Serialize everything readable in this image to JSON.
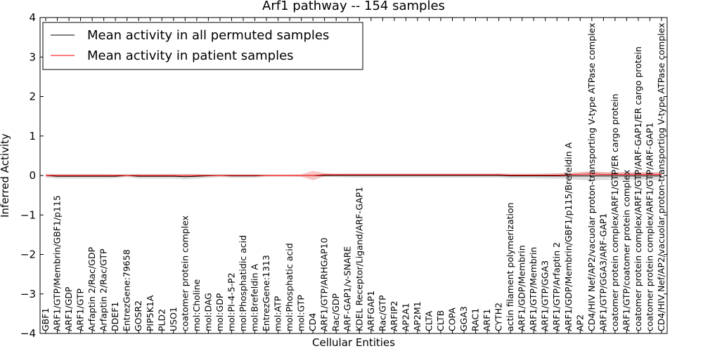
{
  "chart_data": {
    "type": "line",
    "title": "Arf1 pathway -- 154 samples",
    "xlabel": "Cellular Entities",
    "ylabel": "Inferred Activity",
    "ylim": [
      -4,
      4
    ],
    "yticks": [
      -4,
      -3,
      -2,
      -1,
      0,
      1,
      2,
      3,
      4
    ],
    "ytick_labels": [
      "−4",
      "−3",
      "−2",
      "−1",
      "0",
      "1",
      "2",
      "3",
      "4"
    ],
    "grid": false,
    "legend_position": "top-left",
    "categories": [
      "GBF1",
      "ARF1/GTP/Membrin/GBF1/p115",
      "ARF1/GDP",
      "ARF1/GTP",
      "Arfaptin 2/Rac/GDP",
      "Arfaptin 2/Rac/GTP",
      "DDEF1",
      "EntrezGene:79658",
      "GOSR2",
      "PIP5K1A",
      "PLD2",
      "USO1",
      "coatomer protein complex",
      "mol:Choline",
      "mol:DAG",
      "mol:GDP",
      "mol:PI-4-5-P2",
      "mol:Phosphatidic acid",
      "mol:Brefeldin A",
      "EntrezGene:1313",
      "mol:ATP",
      "mol:Phosphatic acid",
      "mol:GTP",
      "CD4",
      "ARF1/GTP/ARHGAP10",
      "Rac/GDP",
      "ARF-GAP1/v-SNARE",
      "KDEL Receptor/Ligand/ARF-GAP1",
      "ARFGAP1",
      "Rac/GTP",
      "ARFIP2",
      "AP2A1",
      "AP2M1",
      "CLTA",
      "CLTB",
      "COPA",
      "GGA3",
      "RAC1",
      "ARF1",
      "CYTH2",
      "actin filament polymerization",
      "ARF1/GDP/Membrin",
      "ARF1/GTP/Membrin",
      "ARF1/GTP/GGA3",
      "ARF1/GTP/Arfaptin 2",
      "ARF1/GDP/Membrin/GBF1/p115/Brefeldin A",
      "AP2",
      "CD4/HIV Nef/AP2/vacuolar proton-transporting V-type ATPase complex",
      "ARF1/GTP/GGA3/ARF-GAP1",
      "coatomer protein complex/ARF1/GTP/ER cargo protein",
      "ARF1/GTP/coatomer protein complex",
      "coatomer protein complex/ARF1/GTP/ARF-GAP1/ER cargo protein",
      "coatomer protein complex/ARF1/GTP/ARF-GAP1",
      "CD4/HIV Nef/AP2/vacuolar proton-transporting V-type ATPase complex"
    ],
    "series": [
      {
        "name": "Mean activity in all permuted samples",
        "color": "#000000",
        "values": [
          0.0,
          -0.02,
          -0.02,
          -0.02,
          -0.02,
          -0.02,
          -0.02,
          0.0,
          -0.02,
          -0.02,
          -0.02,
          -0.02,
          -0.03,
          -0.02,
          -0.01,
          0.0,
          -0.01,
          -0.01,
          -0.01,
          0.0,
          0.0,
          0.0,
          0.0,
          0.0,
          0.0,
          0.0,
          0.0,
          0.0,
          0.0,
          0.0,
          0.0,
          0.0,
          0.0,
          0.0,
          0.0,
          0.0,
          0.0,
          0.0,
          0.0,
          0.0,
          -0.01,
          -0.01,
          -0.01,
          -0.01,
          -0.01,
          -0.01,
          -0.01,
          -0.01,
          -0.01,
          -0.01,
          -0.01,
          -0.01,
          -0.01,
          -0.01
        ]
      },
      {
        "name": "Mean activity in patient samples",
        "color": "#ff0000",
        "values": [
          0.0,
          0.0,
          0.0,
          0.0,
          0.0,
          0.0,
          0.0,
          0.0,
          0.0,
          0.0,
          0.0,
          0.0,
          0.0,
          0.0,
          0.0,
          0.0,
          0.0,
          0.0,
          0.0,
          0.0,
          0.0,
          0.0,
          0.0,
          0.0,
          0.02,
          0.02,
          0.02,
          0.02,
          0.02,
          0.02,
          0.02,
          0.02,
          0.02,
          0.02,
          0.02,
          0.02,
          0.02,
          0.02,
          0.02,
          0.02,
          0.01,
          0.01,
          0.01,
          0.01,
          0.01,
          0.02,
          0.03,
          0.04,
          0.03,
          0.03,
          0.03,
          0.03,
          0.03,
          0.03
        ]
      }
    ],
    "permuted_band_halfwidth": [
      0.05,
      0.06,
      0.06,
      0.06,
      0.06,
      0.06,
      0.05,
      0.04,
      0.06,
      0.06,
      0.06,
      0.06,
      0.07,
      0.06,
      0.05,
      0.04,
      0.05,
      0.05,
      0.05,
      0.03,
      0.03,
      0.03,
      0.03,
      0.03,
      0.04,
      0.04,
      0.05,
      0.05,
      0.05,
      0.05,
      0.05,
      0.05,
      0.05,
      0.05,
      0.05,
      0.05,
      0.05,
      0.05,
      0.05,
      0.05,
      0.06,
      0.06,
      0.06,
      0.07,
      0.07,
      0.08,
      0.1,
      0.12,
      0.1,
      0.1,
      0.1,
      0.1,
      0.1,
      0.1
    ],
    "patient_band_halfwidth": [
      0.03,
      0.03,
      0.03,
      0.03,
      0.03,
      0.03,
      0.03,
      0.02,
      0.03,
      0.03,
      0.03,
      0.03,
      0.03,
      0.03,
      0.02,
      0.02,
      0.02,
      0.02,
      0.02,
      0.02,
      0.02,
      0.02,
      0.03,
      0.12,
      0.04,
      0.03,
      0.03,
      0.03,
      0.03,
      0.03,
      0.03,
      0.03,
      0.03,
      0.03,
      0.03,
      0.03,
      0.03,
      0.03,
      0.03,
      0.03,
      0.03,
      0.03,
      0.03,
      0.03,
      0.04,
      0.04,
      0.05,
      0.06,
      0.05,
      0.05,
      0.05,
      0.05,
      0.05,
      0.05
    ],
    "band_colors": {
      "permuted": "#c8c8c8",
      "patient": "#f2a0a0"
    }
  }
}
